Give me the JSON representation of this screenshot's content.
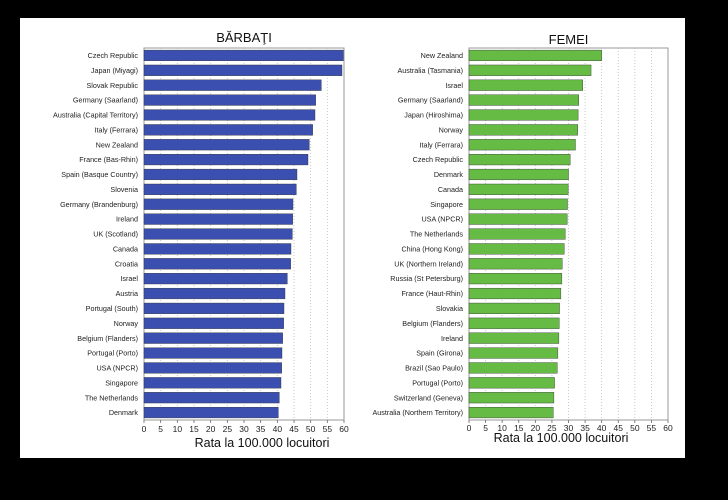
{
  "chart_data": [
    {
      "type": "bar",
      "orientation": "horizontal",
      "title": "BĂRBAŢI",
      "xlabel": "Rata la 100.000 locuitori",
      "xlim": [
        0,
        60
      ],
      "xticks": [
        0,
        5,
        10,
        15,
        20,
        25,
        30,
        35,
        40,
        45,
        50,
        55,
        60
      ],
      "grid": "vertical dotted",
      "color": "#3a4fb0",
      "categories": [
        "Czech Republic",
        "Japan (Miyagi)",
        "Slovak Republic",
        "Germany (Saarland)",
        "Australia (Capital Territory)",
        "Italy (Ferrara)",
        "New Zealand",
        "France (Bas-Rhin)",
        "Spain (Basque Country)",
        "Slovenia",
        "Germany (Brandenburg)",
        "Ireland",
        "UK (Scotland)",
        "Canada",
        "Croatia",
        "Israel",
        "Austria",
        "Portugal (South)",
        "Norway",
        "Belgium (Flanders)",
        "Portugal (Porto)",
        "USA (NPCR)",
        "Singapore",
        "The Netherlands",
        "Denmark"
      ],
      "values": [
        59.8,
        59.4,
        53.2,
        51.5,
        51.3,
        50.6,
        49.6,
        49.2,
        45.9,
        45.7,
        44.7,
        44.6,
        44.5,
        44.1,
        44.0,
        43.0,
        42.3,
        42.0,
        41.9,
        41.6,
        41.4,
        41.3,
        41.1,
        40.6,
        40.3
      ]
    },
    {
      "type": "bar",
      "orientation": "horizontal",
      "title": "FEMEI",
      "xlabel": "Rata la 100.000 locuitori",
      "xlim": [
        0,
        60
      ],
      "xticks": [
        0,
        5,
        10,
        15,
        20,
        25,
        30,
        35,
        40,
        45,
        50,
        55,
        60
      ],
      "grid": "vertical dotted",
      "color": "#66bb44",
      "categories": [
        "New Zealand",
        "Australia (Tasmania)",
        "Israel",
        "Germany (Saarland)",
        "Japan (Hiroshima)",
        "Norway",
        "Italy (Ferrara)",
        "Czech Republic",
        "Denmark",
        "Canada",
        "Singapore",
        "USA (NPCR)",
        "The Netherlands",
        "China (Hong Kong)",
        "UK (Northern Ireland)",
        "Russia (St Petersburg)",
        "France (Haut-Rhin)",
        "Slovakia",
        "Belgium (Flanders)",
        "Ireland",
        "Spain (Girona)",
        "Brazil (Sao Paulo)",
        "Portugal (Porto)",
        "Switzerland (Geneva)",
        "Australia (Northern Territory)"
      ],
      "values": [
        40.0,
        36.8,
        34.3,
        33.1,
        32.9,
        32.8,
        32.1,
        30.5,
        30.0,
        29.9,
        29.7,
        29.6,
        29.0,
        28.7,
        28.1,
        28.0,
        27.7,
        27.3,
        27.2,
        27.1,
        26.8,
        26.6,
        25.8,
        25.6,
        25.4
      ]
    }
  ]
}
